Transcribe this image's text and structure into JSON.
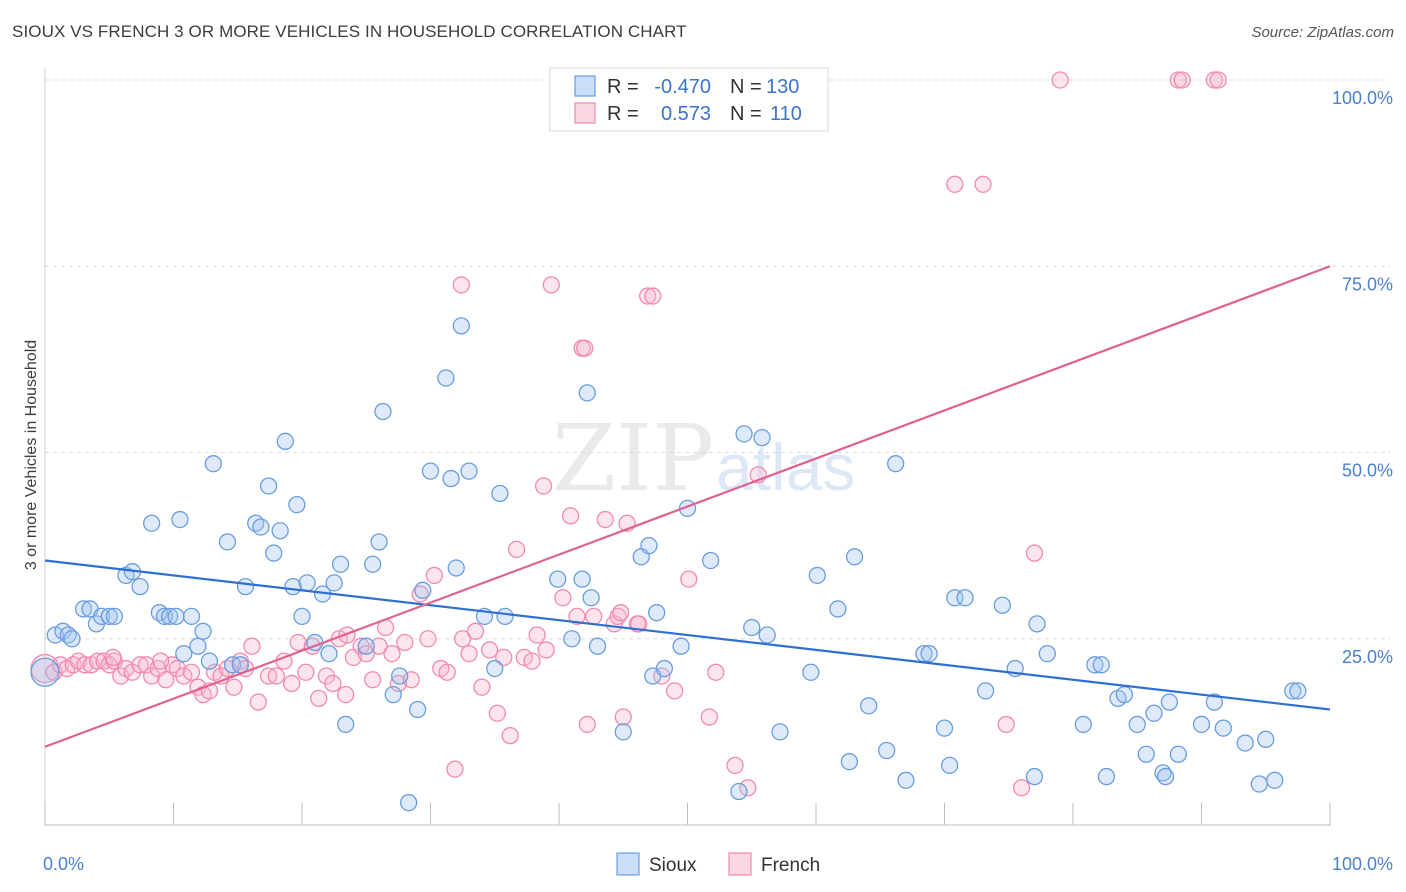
{
  "header": {
    "title": "SIOUX VS FRENCH 3 OR MORE VEHICLES IN HOUSEHOLD CORRELATION CHART",
    "source": "Source: ZipAtlas.com"
  },
  "watermark": {
    "zip": "ZIP",
    "atlas": "atlas"
  },
  "legend": {
    "r_label": "R =",
    "n_label": "N =",
    "rows": [
      {
        "series": "Sioux",
        "r": "-0.470",
        "n": "130",
        "color": "#8fb4e8"
      },
      {
        "series": "French",
        "r": "0.573",
        "n": "110",
        "color": "#f4a6bf"
      }
    ]
  },
  "bottom_legend": [
    "Sioux",
    "French"
  ],
  "chart_data": {
    "type": "scatter",
    "title": "SIOUX VS FRENCH 3 OR MORE VEHICLES IN HOUSEHOLD CORRELATION CHART",
    "xlabel": "",
    "ylabel": "3 or more Vehicles in Household",
    "xlim": [
      0,
      100
    ],
    "ylim": [
      0,
      100
    ],
    "x_ticks": [
      "0.0%",
      "100.0%"
    ],
    "y_ticks": [
      "25.0%",
      "50.0%",
      "75.0%",
      "100.0%"
    ],
    "grid": true,
    "legend_position": "top-center",
    "series": [
      {
        "name": "Sioux",
        "color": "#6a9de0",
        "line_color": "#2f6fd0",
        "trend": {
          "x": [
            0,
            100
          ],
          "y": [
            35.5,
            15.5
          ]
        },
        "points": [
          [
            0,
            20.5
          ],
          [
            0.8,
            25.5
          ],
          [
            1.4,
            26
          ],
          [
            1.8,
            25.5
          ],
          [
            2.1,
            25
          ],
          [
            3,
            29
          ],
          [
            3.5,
            29
          ],
          [
            4,
            27
          ],
          [
            4.4,
            28
          ],
          [
            5,
            28
          ],
          [
            5.4,
            28
          ],
          [
            6.3,
            33.5
          ],
          [
            6.8,
            34
          ],
          [
            7.4,
            32
          ],
          [
            8.3,
            40.5
          ],
          [
            8.9,
            28.5
          ],
          [
            9.3,
            28
          ],
          [
            9.7,
            28
          ],
          [
            10.2,
            28
          ],
          [
            10.5,
            41
          ],
          [
            10.8,
            23
          ],
          [
            11.4,
            28
          ],
          [
            11.9,
            24
          ],
          [
            12.3,
            26
          ],
          [
            12.8,
            22
          ],
          [
            13.1,
            48.5
          ],
          [
            14.2,
            38
          ],
          [
            14.6,
            21.5
          ],
          [
            15.2,
            21.5
          ],
          [
            15.6,
            32
          ],
          [
            16.4,
            40.5
          ],
          [
            16.8,
            40
          ],
          [
            17.4,
            45.5
          ],
          [
            17.8,
            36.5
          ],
          [
            18.3,
            39.5
          ],
          [
            18.7,
            51.5
          ],
          [
            19.3,
            32
          ],
          [
            19.6,
            43
          ],
          [
            20,
            28
          ],
          [
            20.4,
            32.5
          ],
          [
            21,
            24.5
          ],
          [
            21.6,
            31
          ],
          [
            22.1,
            23
          ],
          [
            22.5,
            32.5
          ],
          [
            23,
            35
          ],
          [
            23.4,
            13.5
          ],
          [
            25,
            24
          ],
          [
            25.5,
            35
          ],
          [
            26,
            38
          ],
          [
            26.3,
            55.5
          ],
          [
            27.1,
            17.5
          ],
          [
            27.6,
            20
          ],
          [
            28.3,
            3
          ],
          [
            29,
            15.5
          ],
          [
            29.4,
            31.5
          ],
          [
            30,
            47.5
          ],
          [
            31.6,
            46.5
          ],
          [
            31.2,
            60
          ],
          [
            32,
            34.5
          ],
          [
            32.4,
            67
          ],
          [
            33,
            47.5
          ],
          [
            34.2,
            28
          ],
          [
            35,
            21
          ],
          [
            35.4,
            44.5
          ],
          [
            35.8,
            28
          ],
          [
            39.9,
            33
          ],
          [
            41,
            25
          ],
          [
            41.8,
            33
          ],
          [
            42.2,
            58
          ],
          [
            42.5,
            30.5
          ],
          [
            43,
            24
          ],
          [
            45,
            12.5
          ],
          [
            46.4,
            36
          ],
          [
            47,
            37.5
          ],
          [
            47.3,
            20
          ],
          [
            47.6,
            28.5
          ],
          [
            48.2,
            21
          ],
          [
            49.5,
            24
          ],
          [
            50,
            42.5
          ],
          [
            51.8,
            35.5
          ],
          [
            54,
            4.5
          ],
          [
            54.4,
            52.5
          ],
          [
            55,
            26.5
          ],
          [
            55.8,
            52
          ],
          [
            56.2,
            25.5
          ],
          [
            57.2,
            12.5
          ],
          [
            59.6,
            20.5
          ],
          [
            60.1,
            33.5
          ],
          [
            61.7,
            29
          ],
          [
            62.6,
            8.5
          ],
          [
            63,
            36
          ],
          [
            64.1,
            16
          ],
          [
            65.5,
            10
          ],
          [
            66.2,
            48.5
          ],
          [
            67,
            6
          ],
          [
            68.4,
            23
          ],
          [
            68.8,
            23
          ],
          [
            70,
            13
          ],
          [
            70.4,
            8
          ],
          [
            70.8,
            30.5
          ],
          [
            71.6,
            30.5
          ],
          [
            73.2,
            18
          ],
          [
            74.5,
            29.5
          ],
          [
            75.5,
            21
          ],
          [
            77,
            6.5
          ],
          [
            77.2,
            27
          ],
          [
            78,
            23
          ],
          [
            80.8,
            13.5
          ],
          [
            81.7,
            21.5
          ],
          [
            82.2,
            21.5
          ],
          [
            82.6,
            6.5
          ],
          [
            83.5,
            17
          ],
          [
            84,
            17.5
          ],
          [
            85,
            13.5
          ],
          [
            85.7,
            9.5
          ],
          [
            86.3,
            15
          ],
          [
            87,
            7
          ],
          [
            87.2,
            6.5
          ],
          [
            87.5,
            16.5
          ],
          [
            88.2,
            9.5
          ],
          [
            90,
            13.5
          ],
          [
            91,
            16.5
          ],
          [
            91.7,
            13
          ],
          [
            93.4,
            11
          ],
          [
            94.5,
            5.5
          ],
          [
            95,
            11.5
          ],
          [
            95.7,
            6
          ],
          [
            97.1,
            18
          ],
          [
            97.5,
            18
          ]
        ]
      },
      {
        "name": "French",
        "color": "#f08ab0",
        "line_color": "#e0608e",
        "trend": {
          "x": [
            0,
            100
          ],
          "y": [
            10.5,
            75
          ]
        },
        "points": [
          [
            0,
            21
          ],
          [
            0.7,
            20.5
          ],
          [
            1.2,
            21.5
          ],
          [
            1.7,
            21
          ],
          [
            2.2,
            21.5
          ],
          [
            2.6,
            22
          ],
          [
            3.1,
            21.5
          ],
          [
            3.6,
            21.5
          ],
          [
            4.1,
            22
          ],
          [
            4.6,
            22
          ],
          [
            5,
            21.5
          ],
          [
            5.4,
            22
          ],
          [
            5.9,
            20
          ],
          [
            6.3,
            21
          ],
          [
            6.8,
            20.5
          ],
          [
            7.4,
            21.5
          ],
          [
            7.9,
            21.5
          ],
          [
            8.3,
            20
          ],
          [
            8.8,
            21
          ],
          [
            9.4,
            19.5
          ],
          [
            9.9,
            21.5
          ],
          [
            10.3,
            21
          ],
          [
            10.8,
            20
          ],
          [
            11.4,
            20.5
          ],
          [
            11.9,
            18.5
          ],
          [
            12.3,
            17.5
          ],
          [
            12.8,
            18
          ],
          [
            13.2,
            20.5
          ],
          [
            13.7,
            20
          ],
          [
            14.2,
            21
          ],
          [
            14.7,
            18.5
          ],
          [
            15.2,
            22
          ],
          [
            15.6,
            21
          ],
          [
            16.1,
            24
          ],
          [
            16.6,
            16.5
          ],
          [
            17.4,
            20
          ],
          [
            18,
            20
          ],
          [
            18.6,
            22
          ],
          [
            19.2,
            19
          ],
          [
            19.7,
            24.5
          ],
          [
            20.3,
            20.5
          ],
          [
            20.8,
            24
          ],
          [
            21.3,
            17
          ],
          [
            21.9,
            20
          ],
          [
            22.4,
            19
          ],
          [
            22.9,
            25
          ],
          [
            23.4,
            17.5
          ],
          [
            24,
            22.5
          ],
          [
            24.6,
            24
          ],
          [
            25,
            23
          ],
          [
            25.5,
            19.5
          ],
          [
            26,
            24
          ],
          [
            26.5,
            26.5
          ],
          [
            27,
            23
          ],
          [
            27.5,
            19
          ],
          [
            28,
            24.5
          ],
          [
            28.5,
            19.5
          ],
          [
            29.2,
            31
          ],
          [
            29.8,
            25
          ],
          [
            30.3,
            33.5
          ],
          [
            30.8,
            21
          ],
          [
            31.3,
            20.5
          ],
          [
            31.9,
            7.5
          ],
          [
            32.5,
            25
          ],
          [
            33,
            23
          ],
          [
            33.5,
            26
          ],
          [
            34,
            18.5
          ],
          [
            34.6,
            23.5
          ],
          [
            35.2,
            15
          ],
          [
            35.7,
            22.5
          ],
          [
            36.2,
            12
          ],
          [
            36.7,
            37
          ],
          [
            37.3,
            22.5
          ],
          [
            37.9,
            22
          ],
          [
            38.3,
            25.5
          ],
          [
            38.8,
            45.5
          ],
          [
            39,
            23.5
          ],
          [
            40.3,
            30.5
          ],
          [
            40.9,
            41.5
          ],
          [
            41.4,
            28
          ],
          [
            41.8,
            64
          ],
          [
            42.2,
            13.5
          ],
          [
            42.7,
            28
          ],
          [
            43.6,
            41
          ],
          [
            44.3,
            27
          ],
          [
            44.6,
            28
          ],
          [
            45.3,
            40.5
          ],
          [
            45,
            14.5
          ],
          [
            46.1,
            27
          ],
          [
            46.9,
            71
          ],
          [
            47.3,
            71
          ],
          [
            48,
            20
          ],
          [
            49,
            18
          ],
          [
            50.1,
            33
          ],
          [
            51.7,
            14.5
          ],
          [
            52.2,
            20.5
          ],
          [
            53.7,
            8
          ],
          [
            54.7,
            5
          ],
          [
            55.5,
            47
          ],
          [
            57.5,
            100
          ],
          [
            58,
            100
          ],
          [
            59.5,
            100
          ],
          [
            70.8,
            86
          ],
          [
            73,
            86
          ],
          [
            74.8,
            13.5
          ],
          [
            76,
            5
          ],
          [
            77,
            36.5
          ],
          [
            79,
            100
          ],
          [
            88.2,
            100
          ],
          [
            88.5,
            100
          ],
          [
            91,
            100
          ],
          [
            91.3,
            100
          ],
          [
            39.4,
            72.5
          ],
          [
            32.4,
            72.5
          ],
          [
            42,
            64
          ],
          [
            46.2,
            27
          ],
          [
            44.8,
            28.5
          ],
          [
            23.5,
            25.5
          ],
          [
            5.3,
            22.5
          ],
          [
            9,
            22
          ]
        ]
      }
    ]
  }
}
